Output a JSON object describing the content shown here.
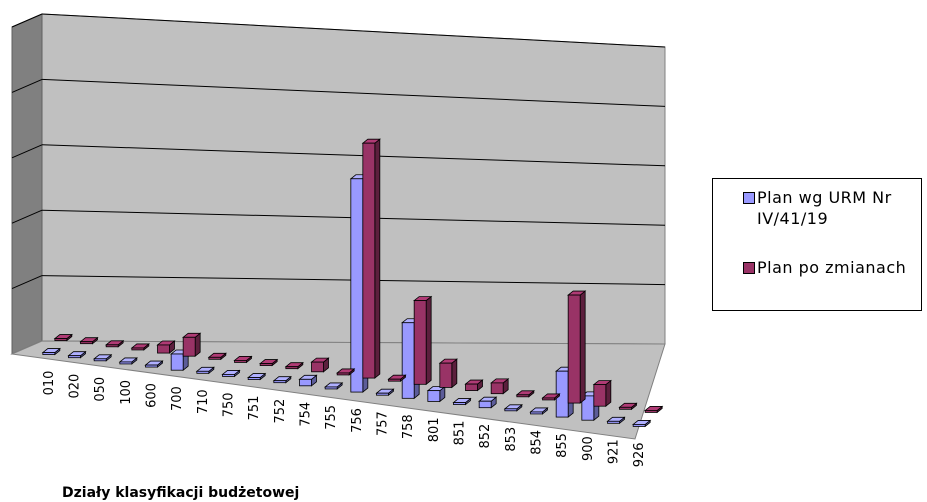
{
  "chart_data": {
    "type": "bar",
    "title": "",
    "xlabel": "Działy klasyfikacji  budżetowej",
    "ylabel": "",
    "categories": [
      "010",
      "020",
      "050",
      "100",
      "600",
      "700",
      "710",
      "750",
      "751",
      "752",
      "754",
      "755",
      "756",
      "757",
      "758",
      "801",
      "851",
      "852",
      "853",
      "854",
      "855",
      "900",
      "921",
      "926"
    ],
    "series": [
      {
        "name": "Plan wg URM Nr IV/41/19",
        "color": "#9999ff",
        "values": [
          0,
          0,
          0,
          0,
          0,
          3.0,
          0,
          0,
          0,
          0,
          1.2,
          0,
          39.5,
          0,
          14.0,
          2.0,
          0,
          1.2,
          0,
          0,
          8.5,
          4.5,
          0,
          0
        ]
      },
      {
        "name": "Plan po zmianach",
        "color": "#993366",
        "values": [
          0,
          0,
          0,
          0,
          1.5,
          3.5,
          0,
          0,
          0,
          0,
          1.8,
          0,
          43.5,
          0,
          15.5,
          4.5,
          1.2,
          2.0,
          0,
          0,
          20.0,
          4.0,
          0,
          0
        ]
      }
    ],
    "ylim": [
      0,
      50
    ],
    "gridlines": 5,
    "grid": true,
    "legend": "right",
    "colors": {
      "wall": "#c0c0c0",
      "side_wall": "#808080",
      "floor": "#c0c0c0"
    }
  },
  "legend": {
    "items": [
      {
        "label": "Plan wg URM Nr IV/41/19",
        "color": "#9999ff"
      },
      {
        "label": "Plan po zmianach",
        "color": "#993366"
      }
    ]
  }
}
